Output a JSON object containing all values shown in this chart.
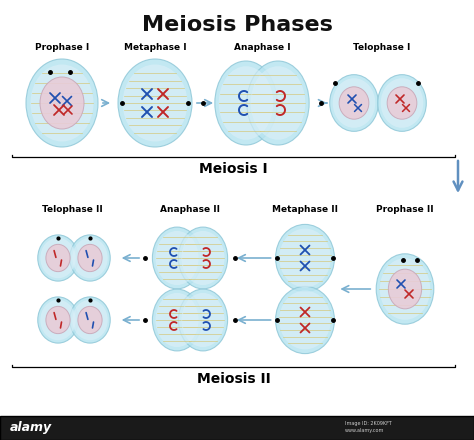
{
  "title": "Meiosis Phases",
  "title_fontsize": 16,
  "title_fontweight": "bold",
  "bg_color": "#ffffff",
  "cell_outer_color": "#b8e4f0",
  "cell_inner_color": "#ddf0f8",
  "nucleus_color": "#e8ccd8",
  "nucleus_edge": "#c8a8b8",
  "spindle_color": "#d4c060",
  "chr_blue": "#2050b0",
  "chr_red": "#c02828",
  "arrow_color": "#7ab0d0",
  "arrow_big_color": "#6090c0",
  "label_fontsize": 6.5,
  "label_fontweight": "bold",
  "section_label_fontsize": 10,
  "section_label_fontweight": "bold",
  "meiosis1_label": "Meiosis I",
  "meiosis2_label": "Meiosis II",
  "row1_labels": [
    "Prophase I",
    "Metaphase I",
    "Anaphase I",
    "Telophase I"
  ],
  "row2_labels": [
    "Telophase II",
    "Anaphase II",
    "Metaphase II",
    "Prophase II"
  ],
  "footer_bg": "#1a1a1a",
  "footer_text1": "alamy",
  "footer_text2": "Image ID: 2K09KFT\nwww.alamy.com"
}
